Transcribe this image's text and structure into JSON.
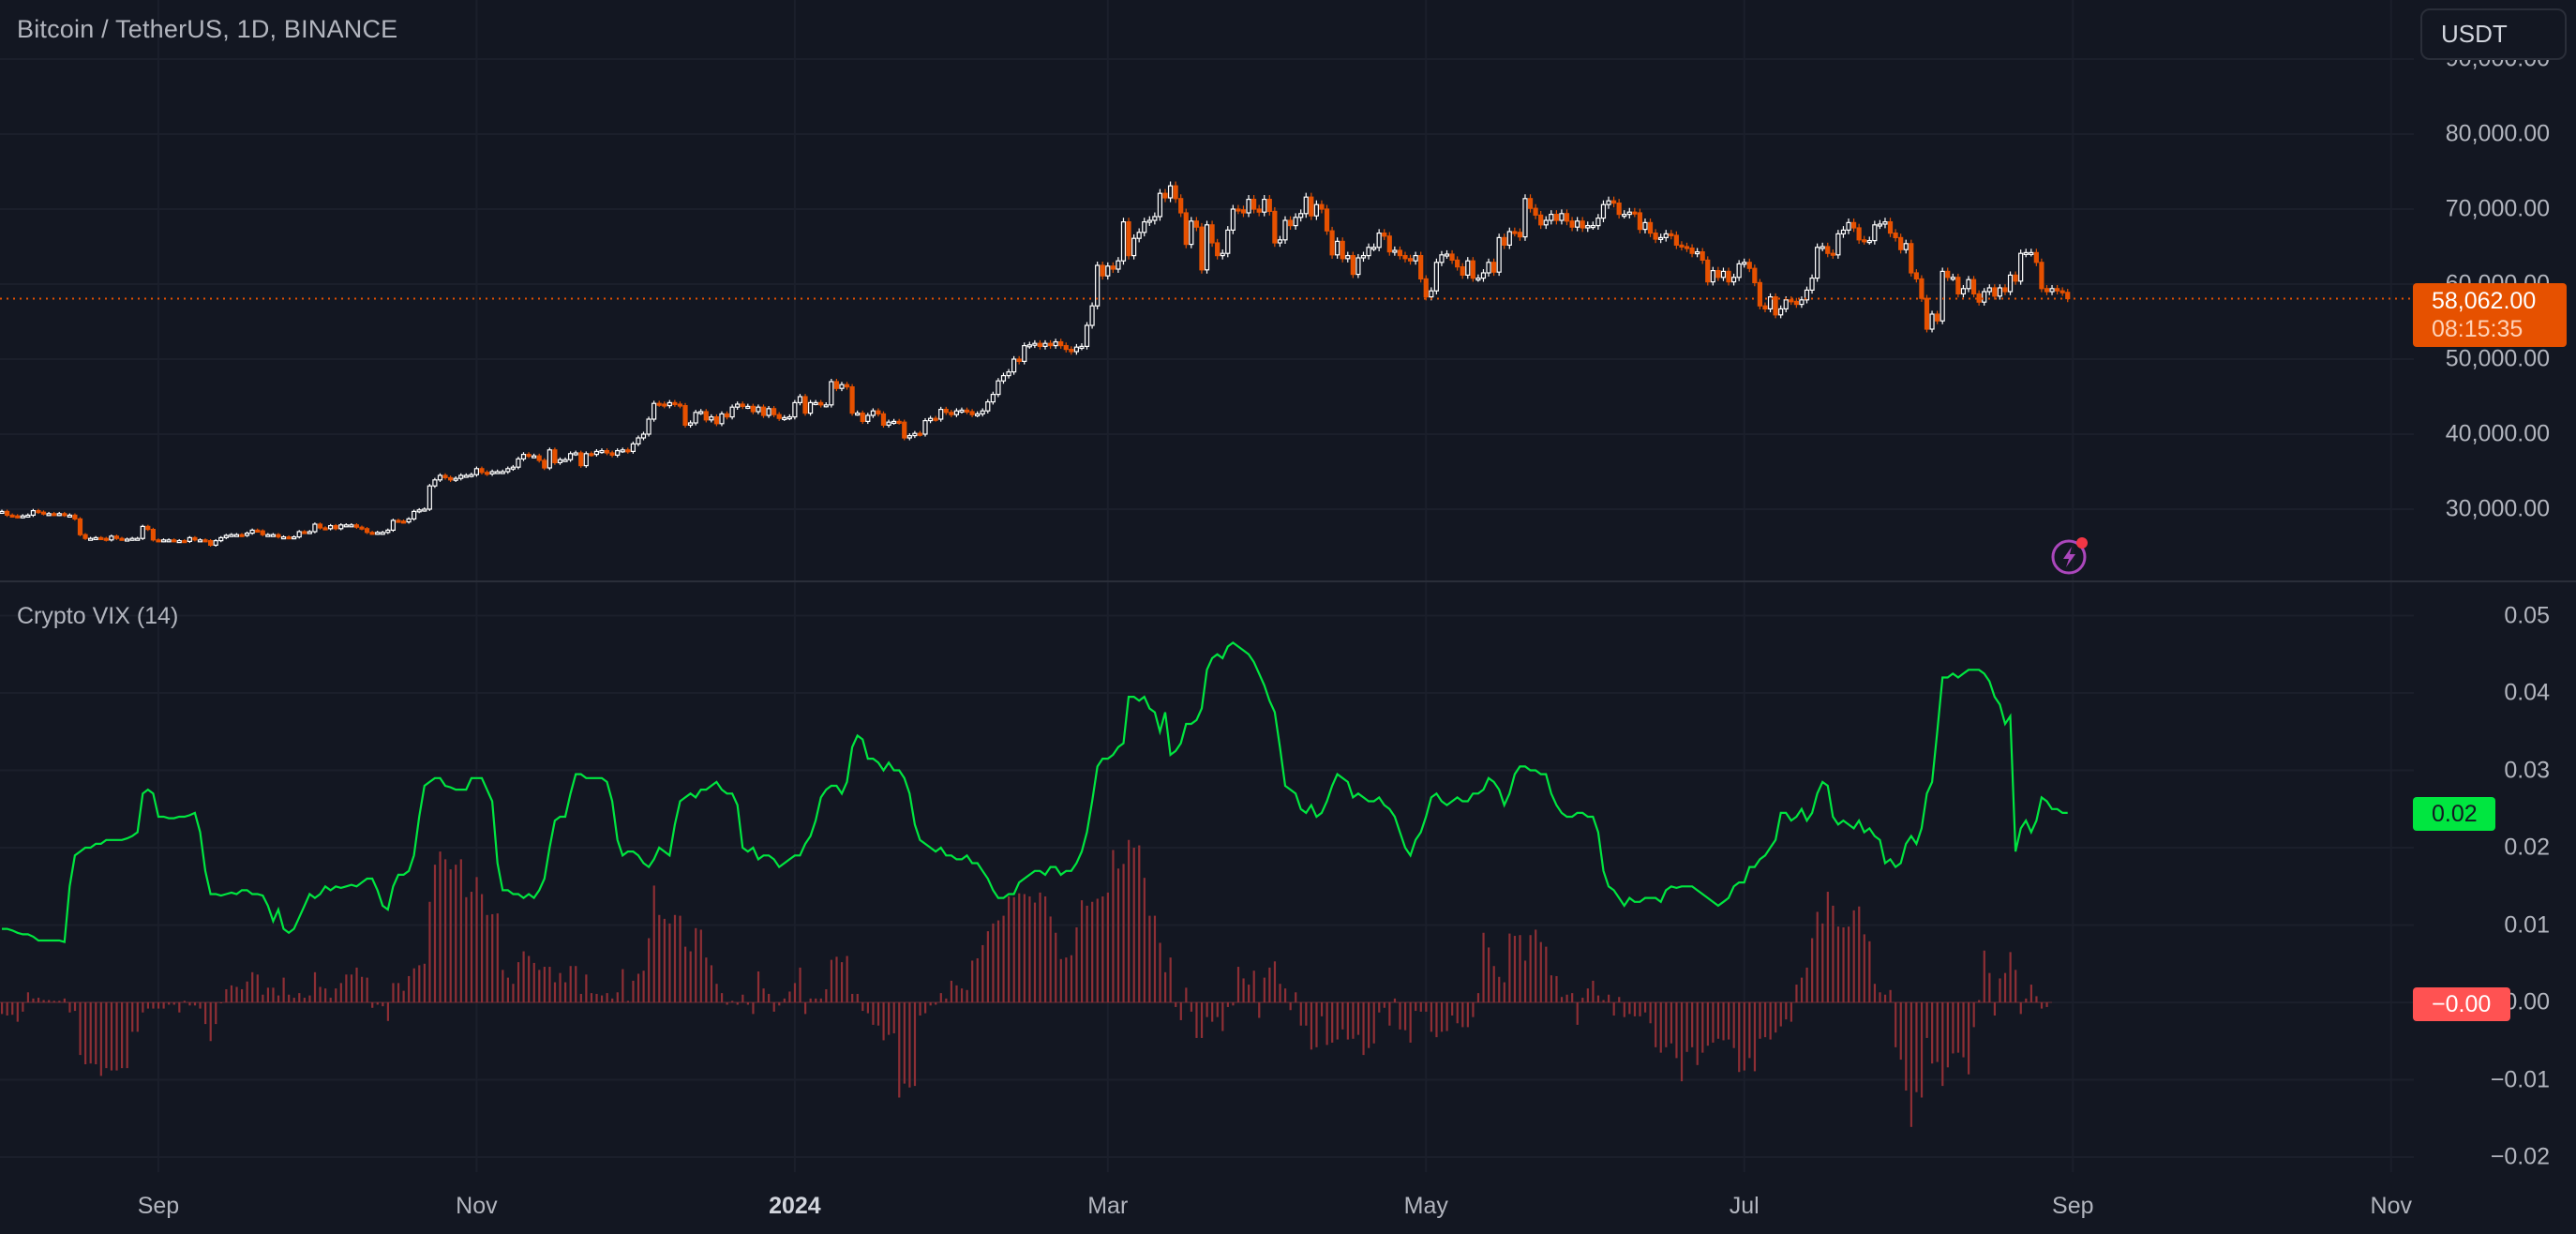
{
  "header": {
    "title": "Bitcoin / TetherUS, 1D, BINANCE",
    "currency_button": "USDT"
  },
  "colors": {
    "background": "#131722",
    "up_candle": "#ffffff",
    "down_candle": "#e65100",
    "vix_line": "#00e640",
    "histogram": "#8e2f35",
    "last_price": "#e65100",
    "vix_value_badge": "#00e640",
    "hist_value_badge": "#ff5252",
    "alert_icon": "#ab47bc"
  },
  "last_price": {
    "value": "58,062.00",
    "countdown": "08:15:35"
  },
  "indicator": {
    "title": "Crypto VIX (14)",
    "line_value": "0.02",
    "hist_value": "−0.00"
  },
  "icons": {
    "alert": "lightning-bolt-circle-icon"
  },
  "chart_data": [
    {
      "type": "candlestick",
      "title": "Bitcoin / TetherUS, 1D, BINANCE",
      "ylim": [
        20000,
        90000
      ],
      "y_ticks": [
        "90,000.00",
        "80,000.00",
        "70,000.00",
        "60,000.00",
        "50,000.00",
        "40,000.00",
        "30,000.00"
      ],
      "y_tick_values": [
        90000,
        80000,
        70000,
        60000,
        50000,
        40000,
        30000
      ],
      "x_ticks": [
        "Sep",
        "Nov",
        "2024",
        "Mar",
        "May",
        "Jul",
        "Sep",
        "Nov"
      ],
      "grid": true,
      "closes": [
        29.7,
        29.2,
        29.1,
        29.0,
        29.1,
        29.2,
        29.8,
        29.6,
        29.4,
        29.4,
        29.3,
        29.4,
        29.2,
        29.2,
        28.7,
        26.6,
        26.1,
        26.1,
        26.2,
        26.1,
        25.9,
        26.4,
        26.1,
        26.0,
        26.0,
        26.1,
        26.1,
        27.7,
        27.3,
        25.9,
        25.8,
        25.9,
        25.9,
        25.8,
        25.8,
        25.7,
        26.2,
        25.9,
        25.9,
        25.8,
        25.2,
        25.8,
        26.2,
        26.5,
        26.6,
        26.6,
        26.5,
        26.8,
        27.2,
        27.1,
        26.6,
        26.6,
        26.6,
        26.3,
        26.3,
        26.2,
        26.3,
        27.0,
        26.9,
        27.0,
        28.0,
        27.5,
        27.4,
        27.8,
        27.4,
        27.9,
        27.9,
        27.9,
        27.6,
        27.4,
        26.9,
        26.8,
        26.9,
        26.9,
        27.2,
        28.5,
        28.4,
        28.3,
        28.7,
        29.7,
        29.9,
        30.0,
        33.1,
        33.9,
        34.5,
        34.2,
        33.9,
        34.1,
        34.5,
        34.5,
        34.6,
        35.4,
        34.9,
        34.7,
        35.0,
        35.0,
        35.0,
        35.4,
        35.6,
        36.7,
        37.3,
        37.1,
        37.1,
        36.5,
        35.5,
        37.9,
        36.2,
        36.6,
        36.6,
        37.4,
        37.5,
        35.8,
        37.4,
        37.3,
        37.7,
        37.8,
        37.5,
        37.2,
        37.8,
        37.9,
        37.7,
        38.7,
        39.5,
        40.0,
        42.0,
        44.1,
        44.0,
        43.8,
        44.2,
        44.0,
        43.8,
        41.2,
        41.5,
        42.9,
        43.0,
        41.9,
        42.3,
        41.4,
        42.7,
        42.3,
        43.6,
        44.0,
        43.7,
        43.7,
        43.0,
        43.6,
        42.5,
        43.4,
        42.6,
        42.1,
        42.2,
        42.3,
        44.2,
        45.0,
        42.8,
        44.2,
        44.2,
        43.9,
        43.9,
        47.0,
        46.1,
        46.6,
        46.3,
        42.8,
        42.8,
        41.7,
        42.5,
        43.1,
        42.7,
        41.2,
        41.6,
        41.7,
        41.6,
        39.5,
        39.8,
        40.1,
        40.0,
        41.8,
        42.1,
        42.0,
        43.3,
        42.9,
        42.6,
        43.1,
        43.2,
        43.0,
        42.6,
        42.7,
        43.1,
        44.3,
        45.3,
        47.1,
        47.8,
        48.3,
        50.0,
        49.7,
        51.8,
        51.9,
        52.1,
        51.7,
        52.1,
        51.8,
        52.3,
        51.8,
        51.3,
        51.0,
        51.6,
        51.7,
        54.5,
        57.1,
        62.5,
        61.1,
        62.4,
        62.0,
        63.1,
        68.3,
        63.8,
        66.1,
        66.9,
        68.3,
        68.5,
        69.0,
        72.1,
        71.5,
        73.1,
        71.4,
        69.5,
        65.3,
        68.4,
        67.6,
        61.9,
        67.9,
        65.5,
        63.8,
        64.1,
        67.2,
        70.0,
        69.9,
        69.5,
        71.3,
        70.0,
        69.6,
        71.3,
        69.7,
        65.5,
        65.9,
        68.5,
        67.8,
        68.9,
        69.4,
        71.6,
        69.1,
        70.6,
        70.0,
        67.1,
        63.9,
        65.7,
        63.4,
        63.8,
        61.3,
        63.5,
        63.8,
        64.9,
        64.9,
        66.8,
        66.4,
        64.3,
        64.5,
        63.8,
        63.4,
        63.1,
        63.8,
        60.7,
        58.3,
        59.1,
        62.9,
        63.9,
        64.0,
        63.2,
        62.3,
        61.2,
        63.1,
        60.8,
        60.8,
        61.5,
        62.9,
        61.6,
        66.2,
        65.2,
        67.0,
        66.9,
        66.3,
        71.4,
        70.1,
        69.2,
        67.9,
        68.5,
        69.3,
        68.5,
        69.4,
        68.4,
        67.6,
        68.4,
        67.5,
        67.8,
        67.8,
        68.8,
        70.6,
        71.1,
        70.8,
        69.3,
        69.3,
        69.6,
        69.5,
        67.3,
        68.2,
        66.8,
        66.0,
        66.2,
        66.7,
        66.5,
        65.2,
        65.0,
        64.8,
        64.1,
        64.3,
        63.2,
        60.3,
        61.8,
        60.9,
        61.7,
        60.3,
        60.9,
        62.7,
        62.9,
        62.1,
        60.2,
        57.1,
        56.7,
        58.3,
        55.9,
        56.7,
        57.9,
        57.7,
        57.3,
        57.9,
        59.2,
        60.8,
        64.9,
        65.0,
        64.1,
        63.9,
        66.7,
        67.2,
        68.2,
        67.5,
        65.9,
        65.8,
        65.8,
        67.9,
        68.0,
        68.3,
        66.8,
        66.2,
        64.6,
        65.4,
        61.5,
        60.7,
        58.1,
        54.0,
        56.0,
        55.1,
        61.7,
        60.9,
        60.9,
        58.7,
        59.4,
        60.6,
        58.7,
        57.6,
        59.0,
        59.5,
        58.4,
        59.5,
        59.0,
        61.2,
        60.4,
        64.1,
        64.2,
        64.2,
        62.9,
        59.4,
        59.0,
        59.4,
        59.1,
        58.9,
        58.062
      ],
      "closes_unit": "thousand USDT"
    },
    {
      "type": "line+histogram",
      "title": "Crypto VIX (14)",
      "ylim": [
        -0.022,
        0.056
      ],
      "y_ticks": [
        "0.05",
        "0.04",
        "0.03",
        "0.02",
        "0.01",
        "0.00",
        "−0.01",
        "−0.02"
      ],
      "y_tick_values": [
        0.05,
        0.04,
        0.03,
        0.02,
        0.01,
        0,
        -0.01,
        -0.02
      ],
      "line": [
        0.0095,
        0.0095,
        0.0093,
        0.009,
        0.0088,
        0.0088,
        0.0085,
        0.008,
        0.008,
        0.008,
        0.008,
        0.008,
        0.0078,
        0.015,
        0.019,
        0.0195,
        0.02,
        0.02,
        0.0205,
        0.0205,
        0.021,
        0.021,
        0.021,
        0.021,
        0.0212,
        0.0215,
        0.022,
        0.027,
        0.0275,
        0.027,
        0.024,
        0.024,
        0.0238,
        0.0238,
        0.024,
        0.024,
        0.0242,
        0.0245,
        0.022,
        0.017,
        0.014,
        0.014,
        0.0138,
        0.014,
        0.0142,
        0.014,
        0.0145,
        0.0145,
        0.014,
        0.014,
        0.0138,
        0.0125,
        0.0105,
        0.012,
        0.0095,
        0.009,
        0.0095,
        0.011,
        0.0125,
        0.014,
        0.0135,
        0.014,
        0.015,
        0.0145,
        0.015,
        0.0148,
        0.015,
        0.0152,
        0.015,
        0.0155,
        0.016,
        0.016,
        0.0145,
        0.0125,
        0.012,
        0.015,
        0.0165,
        0.0165,
        0.017,
        0.019,
        0.024,
        0.028,
        0.0285,
        0.029,
        0.029,
        0.028,
        0.0278,
        0.0275,
        0.0275,
        0.0275,
        0.029,
        0.029,
        0.029,
        0.0275,
        0.026,
        0.018,
        0.0145,
        0.0145,
        0.014,
        0.014,
        0.0135,
        0.014,
        0.0135,
        0.0145,
        0.016,
        0.02,
        0.0235,
        0.024,
        0.024,
        0.027,
        0.0295,
        0.0295,
        0.029,
        0.029,
        0.029,
        0.029,
        0.0285,
        0.026,
        0.021,
        0.019,
        0.0195,
        0.0195,
        0.019,
        0.018,
        0.0175,
        0.0185,
        0.02,
        0.0195,
        0.019,
        0.023,
        0.026,
        0.0265,
        0.027,
        0.0265,
        0.0275,
        0.0275,
        0.028,
        0.0285,
        0.0275,
        0.027,
        0.027,
        0.0255,
        0.02,
        0.0195,
        0.02,
        0.0185,
        0.019,
        0.019,
        0.0185,
        0.0175,
        0.018,
        0.0185,
        0.019,
        0.019,
        0.0205,
        0.0215,
        0.0235,
        0.0265,
        0.0275,
        0.028,
        0.028,
        0.027,
        0.0285,
        0.033,
        0.0345,
        0.034,
        0.0315,
        0.0315,
        0.031,
        0.03,
        0.031,
        0.03,
        0.03,
        0.029,
        0.027,
        0.023,
        0.021,
        0.0205,
        0.02,
        0.0195,
        0.02,
        0.019,
        0.019,
        0.0185,
        0.0185,
        0.019,
        0.018,
        0.018,
        0.017,
        0.016,
        0.0145,
        0.0135,
        0.0135,
        0.014,
        0.014,
        0.0155,
        0.016,
        0.0165,
        0.017,
        0.017,
        0.0165,
        0.0175,
        0.0175,
        0.0165,
        0.017,
        0.017,
        0.018,
        0.0195,
        0.022,
        0.026,
        0.0305,
        0.0315,
        0.0315,
        0.032,
        0.033,
        0.0335,
        0.0395,
        0.0395,
        0.039,
        0.0395,
        0.038,
        0.0375,
        0.035,
        0.0375,
        0.032,
        0.0325,
        0.0335,
        0.036,
        0.036,
        0.0365,
        0.038,
        0.043,
        0.0445,
        0.045,
        0.0445,
        0.046,
        0.0465,
        0.046,
        0.0455,
        0.045,
        0.044,
        0.0425,
        0.041,
        0.039,
        0.0375,
        0.033,
        0.028,
        0.0275,
        0.027,
        0.025,
        0.0245,
        0.0255,
        0.024,
        0.0245,
        0.026,
        0.028,
        0.0295,
        0.029,
        0.0285,
        0.0265,
        0.027,
        0.0265,
        0.026,
        0.026,
        0.0265,
        0.0255,
        0.025,
        0.024,
        0.022,
        0.02,
        0.019,
        0.021,
        0.022,
        0.024,
        0.0265,
        0.027,
        0.026,
        0.0255,
        0.026,
        0.0265,
        0.026,
        0.026,
        0.027,
        0.027,
        0.0275,
        0.029,
        0.0285,
        0.0275,
        0.0255,
        0.027,
        0.0295,
        0.0305,
        0.0305,
        0.03,
        0.03,
        0.0295,
        0.0295,
        0.027,
        0.0255,
        0.0245,
        0.024,
        0.024,
        0.0245,
        0.0245,
        0.024,
        0.024,
        0.022,
        0.017,
        0.015,
        0.0145,
        0.0135,
        0.0125,
        0.0135,
        0.013,
        0.013,
        0.0135,
        0.0135,
        0.0135,
        0.013,
        0.0145,
        0.015,
        0.0148,
        0.015,
        0.015,
        0.015,
        0.0145,
        0.014,
        0.0135,
        0.013,
        0.0125,
        0.013,
        0.0135,
        0.015,
        0.0155,
        0.0155,
        0.0175,
        0.0175,
        0.0185,
        0.019,
        0.02,
        0.021,
        0.0245,
        0.0245,
        0.0235,
        0.024,
        0.025,
        0.0235,
        0.0245,
        0.027,
        0.0285,
        0.028,
        0.024,
        0.023,
        0.0235,
        0.023,
        0.0225,
        0.0235,
        0.022,
        0.0225,
        0.0215,
        0.021,
        0.018,
        0.0185,
        0.0175,
        0.018,
        0.0205,
        0.0215,
        0.0205,
        0.0225,
        0.027,
        0.0285,
        0.035,
        0.042,
        0.042,
        0.0425,
        0.042,
        0.0425,
        0.043,
        0.043,
        0.043,
        0.0425,
        0.0415,
        0.0395,
        0.0385,
        0.036,
        0.037,
        0.0195,
        0.0225,
        0.0235,
        0.022,
        0.0235,
        0.0265,
        0.026,
        0.025,
        0.025,
        0.0245,
        0.0245
      ],
      "histogram": [
        -0.0015,
        -0.0017,
        -0.0016,
        -0.0025,
        -0.0012,
        0.0013,
        0.0005,
        0.0006,
        0.0003,
        0.0003,
        0.0002,
        0.0002,
        0.0005,
        -0.0013,
        -0.0011,
        -0.0068,
        -0.008,
        -0.0079,
        -0.008,
        -0.0095,
        -0.0085,
        -0.0088,
        -0.0088,
        -0.0085,
        -0.0085,
        -0.0038,
        -0.0038,
        -0.0013,
        -0.0008,
        -0.0008,
        -0.0008,
        -0.0008,
        -0.0003,
        -0.0003,
        -0.0013,
        0.0002,
        -0.0004,
        -0.0004,
        -0.0008,
        -0.0028,
        -0.005,
        -0.0028,
        0.0,
        0.0017,
        0.0022,
        0.002,
        0.0017,
        0.0027,
        0.0039,
        0.0036,
        0.001,
        0.0019,
        0.0019,
        0.0009,
        0.0032,
        0.001,
        0.0006,
        0.0012,
        0.0006,
        0.0009,
        0.0039,
        0.002,
        0.0018,
        0.0006,
        0.0018,
        0.0025,
        0.0036,
        0.0036,
        0.0045,
        0.0033,
        0.0032,
        -0.0007,
        -0.0003,
        -0.0005,
        -0.0024,
        0.0025,
        0.0025,
        0.0015,
        0.0034,
        0.0044,
        0.0048,
        0.005,
        0.013,
        0.0178,
        0.0195,
        0.0185,
        0.0172,
        0.0178,
        0.0185,
        0.0136,
        0.0143,
        0.0162,
        0.014,
        0.0113,
        0.0114,
        0.0115,
        0.0042,
        0.0032,
        0.0024,
        0.0052,
        0.0066,
        0.006,
        0.0051,
        0.0042,
        0.0046,
        0.0046,
        0.0026,
        0.0038,
        0.0026,
        0.0047,
        0.0047,
        0.0011,
        0.0036,
        0.0012,
        0.0011,
        0.0009,
        0.0012,
        0.0005,
        0.0013,
        0.0043,
        0.0002,
        0.0028,
        0.0037,
        0.0041,
        0.0083,
        0.0151,
        0.0113,
        0.0108,
        0.0102,
        0.0113,
        0.0112,
        0.0072,
        0.0066,
        0.0096,
        0.0094,
        0.0058,
        0.0048,
        0.0024,
        0.0012,
        -0.0003,
        0.0002,
        -0.0003,
        0.001,
        -0.0003,
        -0.0015,
        0.004,
        0.0018,
        0.0011,
        -0.0012,
        -0.0004,
        0.0005,
        0.0014,
        0.0025,
        0.0045,
        -0.0015,
        0.0005,
        0.0005,
        0.0005,
        0.0017,
        0.0055,
        0.0059,
        0.0052,
        0.006,
        0.0011,
        0.0011,
        -0.0011,
        -0.0014,
        -0.0029,
        -0.003,
        -0.0049,
        -0.0042,
        -0.004,
        -0.0123,
        -0.0105,
        -0.011,
        -0.0108,
        -0.0017,
        -0.0014,
        -0.0004,
        -0.0003,
        0.0012,
        0.0005,
        0.0028,
        0.0022,
        0.0018,
        0.0016,
        0.0054,
        0.0057,
        0.0074,
        0.0092,
        0.0102,
        0.0106,
        0.0112,
        0.0137,
        0.0136,
        0.0141,
        0.014,
        0.0137,
        0.0129,
        0.0142,
        0.0137,
        0.0111,
        0.009,
        0.0056,
        0.0058,
        0.0061,
        0.0097,
        0.0132,
        0.0125,
        0.013,
        0.0134,
        0.0137,
        0.0142,
        0.0197,
        0.0173,
        0.0179,
        0.021,
        0.02,
        0.0203,
        0.0161,
        0.0112,
        0.0112,
        0.0077,
        0.0039,
        0.0058,
        -0.0006,
        -0.0023,
        0.0019,
        -0.0012,
        -0.0046,
        -0.0046,
        -0.0019,
        -0.0025,
        -0.0019,
        -0.0037,
        -0.0006,
        -0.0004,
        0.0046,
        0.0031,
        0.0023,
        0.0041,
        -0.002,
        0.0032,
        0.0045,
        0.0053,
        0.0024,
        0.0018,
        -0.001,
        0.0013,
        -0.003,
        -0.003,
        -0.0061,
        -0.0058,
        -0.0018,
        -0.0055,
        -0.0052,
        -0.0048,
        -0.0035,
        -0.0048,
        -0.0047,
        -0.0042,
        -0.0068,
        -0.0059,
        -0.0053,
        -0.0013,
        -0.0007,
        -0.003,
        0.0005,
        -0.0035,
        -0.0036,
        -0.0052,
        -0.0011,
        -0.0012,
        -0.0012,
        -0.0038,
        -0.0045,
        -0.0038,
        -0.0037,
        -0.0017,
        -0.0027,
        -0.0032,
        -0.0032,
        -0.0019,
        0.0012,
        0.009,
        0.0071,
        0.0047,
        0.0033,
        0.0026,
        0.0089,
        0.0086,
        0.0087,
        0.0054,
        0.0087,
        0.0094,
        0.0078,
        0.0072,
        0.0035,
        0.0034,
        0.0007,
        0.001,
        0.0012,
        -0.0029,
        0.0006,
        0.0018,
        0.0028,
        0.0009,
        0.0003,
        0.001,
        -0.0017,
        0.0007,
        -0.0019,
        -0.0015,
        -0.0018,
        -0.0018,
        -0.0013,
        -0.0027,
        -0.0058,
        -0.0065,
        -0.0058,
        -0.0053,
        -0.0072,
        -0.0102,
        -0.0064,
        -0.0058,
        -0.0081,
        -0.0065,
        -0.0056,
        -0.0052,
        -0.0047,
        -0.0049,
        -0.0048,
        -0.0059,
        -0.009,
        -0.0088,
        -0.0072,
        -0.0089,
        -0.0047,
        -0.0045,
        -0.0048,
        -0.0039,
        -0.0031,
        -0.0022,
        -0.0025,
        0.0023,
        0.0032,
        0.0045,
        0.0083,
        0.0117,
        0.0102,
        0.0143,
        0.0125,
        0.0098,
        0.0097,
        0.0098,
        0.0119,
        0.0124,
        0.0088,
        0.0079,
        0.0024,
        0.0013,
        0.001,
        0.0016,
        -0.0058,
        -0.0074,
        -0.0114,
        -0.0161,
        -0.0116,
        -0.0123,
        -0.0046,
        -0.0079,
        -0.0077,
        -0.0108,
        -0.0084,
        -0.0066,
        -0.0065,
        -0.0071,
        -0.0093,
        -0.0032,
        0.0003,
        0.0067,
        0.0038,
        -0.0017,
        0.0031,
        0.0038,
        0.0065,
        0.0042,
        -0.0015,
        0.0005,
        0.0023,
        0.0008,
        -0.0008,
        -0.0006
      ]
    }
  ]
}
